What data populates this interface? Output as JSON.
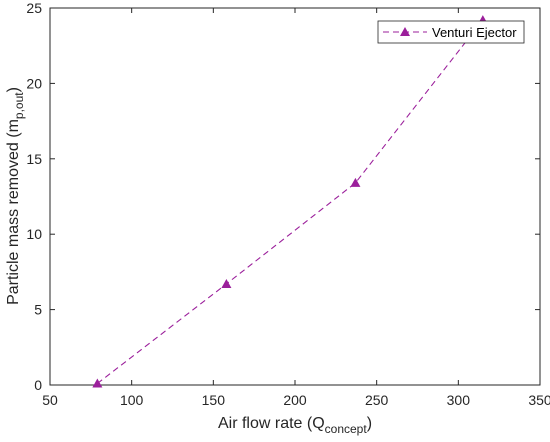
{
  "chart_data": {
    "type": "line",
    "title": "",
    "xlabel": "Air flow rate (Q",
    "xlabel_sub": "concept",
    "xlabel_end": ")",
    "ylabel": "Particle mass removed (m",
    "ylabel_sub": "p,out",
    "ylabel_end": ")",
    "xlim": [
      50,
      350
    ],
    "ylim": [
      0,
      25
    ],
    "xticks": [
      50,
      100,
      150,
      200,
      250,
      300,
      350
    ],
    "yticks": [
      0,
      5,
      10,
      15,
      20,
      25
    ],
    "grid": false,
    "legend_position": "top-right",
    "series": [
      {
        "name": "Venturi Ejector",
        "color": "#9b1f9b",
        "line_style": "dashed",
        "marker": "triangle",
        "x": [
          79,
          158,
          237,
          315
        ],
        "y": [
          0.1,
          6.7,
          13.4,
          24.2
        ]
      }
    ]
  }
}
